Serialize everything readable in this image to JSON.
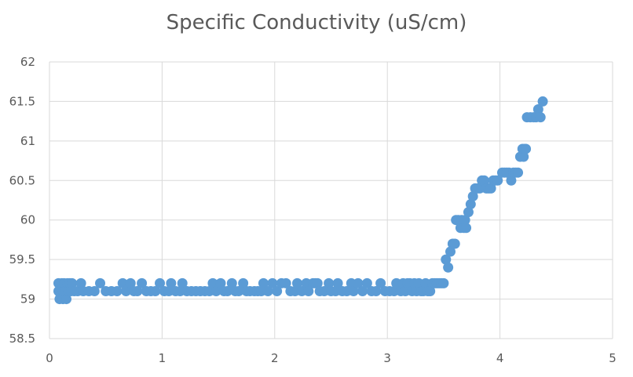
{
  "chart_data": {
    "type": "scatter",
    "title": "Specific Conductivity (uS/cm)",
    "xlabel": "",
    "ylabel": "",
    "xlim": [
      0,
      5
    ],
    "ylim": [
      58.5,
      62
    ],
    "x_ticks": [
      "0",
      "1",
      "2",
      "3",
      "4",
      "5"
    ],
    "y_ticks": [
      "58.5",
      "59",
      "59.5",
      "60",
      "60.5",
      "61",
      "61.5",
      "62"
    ],
    "grid": true,
    "legend": "none",
    "marker_color": "#5b9bd5",
    "points": [
      [
        0.08,
        59.1
      ],
      [
        0.08,
        59.2
      ],
      [
        0.09,
        59.0
      ],
      [
        0.1,
        59.1
      ],
      [
        0.11,
        59.2
      ],
      [
        0.12,
        59.0
      ],
      [
        0.12,
        59.1
      ],
      [
        0.13,
        59.2
      ],
      [
        0.14,
        59.1
      ],
      [
        0.15,
        59.0
      ],
      [
        0.16,
        59.2
      ],
      [
        0.17,
        59.1
      ],
      [
        0.18,
        59.2
      ],
      [
        0.19,
        59.1
      ],
      [
        0.2,
        59.2
      ],
      [
        0.22,
        59.1
      ],
      [
        0.25,
        59.1
      ],
      [
        0.28,
        59.2
      ],
      [
        0.3,
        59.1
      ],
      [
        0.35,
        59.1
      ],
      [
        0.4,
        59.1
      ],
      [
        0.45,
        59.2
      ],
      [
        0.5,
        59.1
      ],
      [
        0.55,
        59.1
      ],
      [
        0.6,
        59.1
      ],
      [
        0.65,
        59.2
      ],
      [
        0.68,
        59.1
      ],
      [
        0.72,
        59.2
      ],
      [
        0.75,
        59.1
      ],
      [
        0.78,
        59.1
      ],
      [
        0.82,
        59.2
      ],
      [
        0.86,
        59.1
      ],
      [
        0.9,
        59.1
      ],
      [
        0.94,
        59.1
      ],
      [
        0.98,
        59.2
      ],
      [
        1.02,
        59.1
      ],
      [
        1.06,
        59.1
      ],
      [
        1.08,
        59.2
      ],
      [
        1.12,
        59.1
      ],
      [
        1.16,
        59.1
      ],
      [
        1.18,
        59.2
      ],
      [
        1.22,
        59.1
      ],
      [
        1.26,
        59.1
      ],
      [
        1.3,
        59.1
      ],
      [
        1.34,
        59.1
      ],
      [
        1.38,
        59.1
      ],
      [
        1.42,
        59.1
      ],
      [
        1.45,
        59.2
      ],
      [
        1.48,
        59.1
      ],
      [
        1.52,
        59.2
      ],
      [
        1.55,
        59.1
      ],
      [
        1.58,
        59.1
      ],
      [
        1.62,
        59.2
      ],
      [
        1.65,
        59.1
      ],
      [
        1.68,
        59.1
      ],
      [
        1.72,
        59.2
      ],
      [
        1.75,
        59.1
      ],
      [
        1.78,
        59.1
      ],
      [
        1.82,
        59.1
      ],
      [
        1.85,
        59.1
      ],
      [
        1.88,
        59.1
      ],
      [
        1.9,
        59.2
      ],
      [
        1.94,
        59.1
      ],
      [
        1.98,
        59.2
      ],
      [
        2.02,
        59.1
      ],
      [
        2.06,
        59.2
      ],
      [
        2.1,
        59.2
      ],
      [
        2.14,
        59.1
      ],
      [
        2.18,
        59.1
      ],
      [
        2.2,
        59.2
      ],
      [
        2.24,
        59.1
      ],
      [
        2.28,
        59.2
      ],
      [
        2.3,
        59.1
      ],
      [
        2.34,
        59.2
      ],
      [
        2.36,
        59.2
      ],
      [
        2.38,
        59.2
      ],
      [
        2.4,
        59.1
      ],
      [
        2.44,
        59.1
      ],
      [
        2.48,
        59.2
      ],
      [
        2.5,
        59.1
      ],
      [
        2.54,
        59.1
      ],
      [
        2.56,
        59.2
      ],
      [
        2.6,
        59.1
      ],
      [
        2.64,
        59.1
      ],
      [
        2.68,
        59.2
      ],
      [
        2.7,
        59.1
      ],
      [
        2.74,
        59.2
      ],
      [
        2.78,
        59.1
      ],
      [
        2.82,
        59.2
      ],
      [
        2.86,
        59.1
      ],
      [
        2.9,
        59.1
      ],
      [
        2.94,
        59.2
      ],
      [
        2.98,
        59.1
      ],
      [
        3.02,
        59.1
      ],
      [
        3.06,
        59.1
      ],
      [
        3.08,
        59.2
      ],
      [
        3.12,
        59.1
      ],
      [
        3.14,
        59.2
      ],
      [
        3.16,
        59.1
      ],
      [
        3.18,
        59.2
      ],
      [
        3.2,
        59.2
      ],
      [
        3.22,
        59.1
      ],
      [
        3.24,
        59.2
      ],
      [
        3.26,
        59.1
      ],
      [
        3.28,
        59.2
      ],
      [
        3.3,
        59.1
      ],
      [
        3.32,
        59.1
      ],
      [
        3.34,
        59.2
      ],
      [
        3.36,
        59.1
      ],
      [
        3.38,
        59.1
      ],
      [
        3.4,
        59.2
      ],
      [
        3.42,
        59.2
      ],
      [
        3.44,
        59.2
      ],
      [
        3.46,
        59.2
      ],
      [
        3.48,
        59.2
      ],
      [
        3.5,
        59.2
      ],
      [
        3.52,
        59.5
      ],
      [
        3.54,
        59.4
      ],
      [
        3.56,
        59.6
      ],
      [
        3.58,
        59.7
      ],
      [
        3.6,
        59.7
      ],
      [
        3.61,
        60.0
      ],
      [
        3.63,
        60.0
      ],
      [
        3.65,
        59.9
      ],
      [
        3.66,
        60.0
      ],
      [
        3.68,
        59.9
      ],
      [
        3.69,
        60.0
      ],
      [
        3.7,
        59.9
      ],
      [
        3.72,
        60.1
      ],
      [
        3.74,
        60.2
      ],
      [
        3.76,
        60.3
      ],
      [
        3.78,
        60.4
      ],
      [
        3.8,
        60.4
      ],
      [
        3.82,
        60.4
      ],
      [
        3.84,
        60.5
      ],
      [
        3.86,
        60.5
      ],
      [
        3.88,
        60.4
      ],
      [
        3.9,
        60.4
      ],
      [
        3.92,
        60.4
      ],
      [
        3.94,
        60.5
      ],
      [
        3.96,
        60.5
      ],
      [
        3.98,
        60.5
      ],
      [
        4.02,
        60.6
      ],
      [
        4.04,
        60.6
      ],
      [
        4.06,
        60.6
      ],
      [
        4.08,
        60.6
      ],
      [
        4.1,
        60.5
      ],
      [
        4.12,
        60.6
      ],
      [
        4.14,
        60.6
      ],
      [
        4.16,
        60.6
      ],
      [
        4.18,
        60.8
      ],
      [
        4.2,
        60.9
      ],
      [
        4.21,
        60.8
      ],
      [
        4.22,
        60.9
      ],
      [
        4.23,
        60.9
      ],
      [
        4.24,
        61.3
      ],
      [
        4.27,
        61.3
      ],
      [
        4.3,
        61.3
      ],
      [
        4.32,
        61.3
      ],
      [
        4.34,
        61.4
      ],
      [
        4.36,
        61.3
      ],
      [
        4.38,
        61.5
      ]
    ]
  }
}
